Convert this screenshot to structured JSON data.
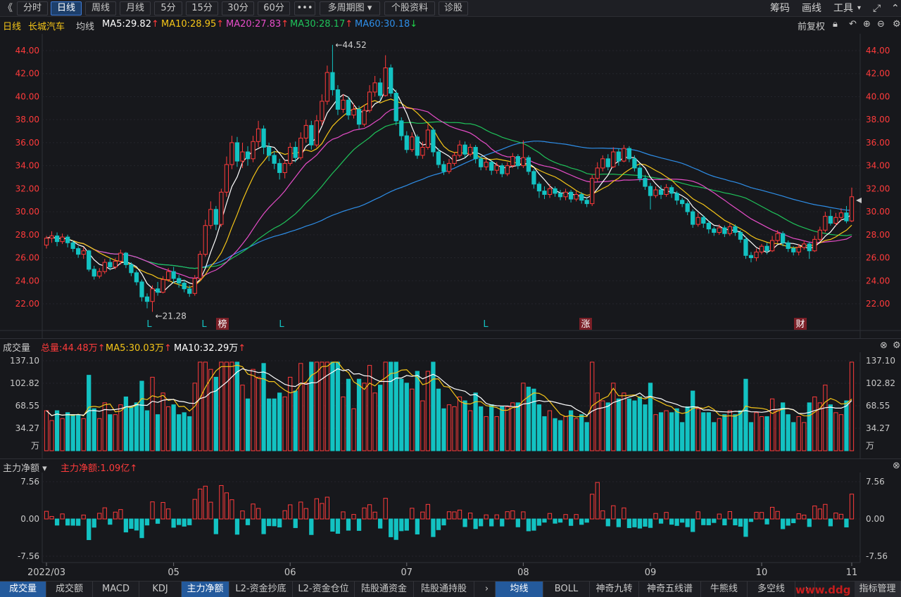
{
  "toolbar": {
    "back": "《",
    "tabs": [
      "分时",
      "日线",
      "周线",
      "月线",
      "5分",
      "15分",
      "30分",
      "60分"
    ],
    "more": "•••",
    "multi_period": "多周期图",
    "stock_info": "个股资料",
    "diagnose": "诊股",
    "right": [
      "筹码",
      "画线",
      "工具"
    ]
  },
  "ma_info": {
    "period": "日线",
    "stock": "长城汽车",
    "avg_label": "均线",
    "ma5": "MA5:29.82",
    "ma10": "MA10:28.95",
    "ma20": "MA20:27.83",
    "ma30": "MA30:28.17",
    "ma60": "MA60:30.18",
    "adjust": "前复权"
  },
  "price_axis": [
    "44.00",
    "42.00",
    "40.00",
    "38.00",
    "36.00",
    "34.00",
    "32.00",
    "30.00",
    "28.00",
    "26.00",
    "24.00",
    "22.00"
  ],
  "annotations": {
    "high": "44.52",
    "low": "21.28"
  },
  "markers": [
    "L",
    "L",
    "榜",
    "L",
    "L",
    "涨",
    "财"
  ],
  "volume": {
    "title": "成交量",
    "total": "总量:44.48万",
    "ma5": "MA5:30.03万",
    "ma10": "MA10:32.29万",
    "axis": [
      "137.10",
      "102.82",
      "68.55",
      "34.27"
    ],
    "unit": "万"
  },
  "netflow": {
    "title": "主力净额",
    "value": "主力净额:1.09亿",
    "axis": [
      "7.56",
      "0.00",
      "-7.56"
    ]
  },
  "date_axis": [
    "2022/03",
    "05",
    "06",
    "07",
    "08",
    "09",
    "10",
    "11"
  ],
  "bottom_tabs_left": [
    "成交量",
    "成交额",
    "MACD",
    "KDJ",
    "主力净额",
    "L2-资金抄底",
    "L2-资金仓位",
    "陆股通资金",
    "陆股通持股"
  ],
  "bottom_tabs_right": [
    "均线",
    "BOLL",
    "神奇九转",
    "神奇五线谱",
    "牛熊线",
    "多空线"
  ],
  "bottom_right": "指标管理",
  "watermark": "www.ddg",
  "colors": {
    "up": "#ff3b3b",
    "down": "#13c2c2",
    "ma5": "#ffffff",
    "ma10": "#f5c518",
    "ma20": "#e64dc8",
    "ma30": "#1fc25a",
    "ma60": "#2e8ee8"
  },
  "chart_data": {
    "type": "candlestick",
    "ylim": [
      21,
      45
    ],
    "candles": [
      [
        27.1,
        27.7,
        27.9,
        26.8
      ],
      [
        27.7,
        27.9,
        28.3,
        27.3
      ],
      [
        27.9,
        27.4,
        28.2,
        27.0
      ],
      [
        27.4,
        27.8,
        28.1,
        27.2
      ],
      [
        27.8,
        27.3,
        28.0,
        26.9
      ],
      [
        27.3,
        26.8,
        27.5,
        26.5
      ],
      [
        26.8,
        26.3,
        27.0,
        26.0
      ],
      [
        26.3,
        26.6,
        26.9,
        25.9
      ],
      [
        26.6,
        25.0,
        26.7,
        24.8
      ],
      [
        25.0,
        24.4,
        25.3,
        24.1
      ],
      [
        24.4,
        24.8,
        25.1,
        24.2
      ],
      [
        24.8,
        25.6,
        25.9,
        24.6
      ],
      [
        25.6,
        25.2,
        26.0,
        24.9
      ],
      [
        25.2,
        25.7,
        26.0,
        25.0
      ],
      [
        25.7,
        26.4,
        26.7,
        25.4
      ],
      [
        26.4,
        25.4,
        26.5,
        25.1
      ],
      [
        25.4,
        24.7,
        25.6,
        24.4
      ],
      [
        24.7,
        23.9,
        24.9,
        23.6
      ],
      [
        23.9,
        22.6,
        24.1,
        22.2
      ],
      [
        22.6,
        22.2,
        22.9,
        21.6
      ],
      [
        22.2,
        23.3,
        23.6,
        21.3
      ],
      [
        23.3,
        23.0,
        23.9,
        22.7
      ],
      [
        23.0,
        24.1,
        24.4,
        22.9
      ],
      [
        24.1,
        24.8,
        25.1,
        23.9
      ],
      [
        24.8,
        24.2,
        25.2,
        23.8
      ],
      [
        24.2,
        23.8,
        24.5,
        23.4
      ],
      [
        23.8,
        23.3,
        24.1,
        23.0
      ],
      [
        23.3,
        22.9,
        23.6,
        22.6
      ],
      [
        22.9,
        24.2,
        24.5,
        22.7
      ],
      [
        24.2,
        26.3,
        26.6,
        24.0
      ],
      [
        26.3,
        28.8,
        29.3,
        26.1
      ],
      [
        28.8,
        30.2,
        30.9,
        28.5
      ],
      [
        30.2,
        28.9,
        30.5,
        28.4
      ],
      [
        28.9,
        31.7,
        32.0,
        28.7
      ],
      [
        31.7,
        34.1,
        34.8,
        31.3
      ],
      [
        34.1,
        36.0,
        36.6,
        33.7
      ],
      [
        36.0,
        34.4,
        36.5,
        33.9
      ],
      [
        34.4,
        35.2,
        36.0,
        33.8
      ],
      [
        35.2,
        34.6,
        35.7,
        34.0
      ],
      [
        34.6,
        36.1,
        36.6,
        34.3
      ],
      [
        36.1,
        37.2,
        37.9,
        35.6
      ],
      [
        37.2,
        35.6,
        37.5,
        35.0
      ],
      [
        35.6,
        34.9,
        36.0,
        34.4
      ],
      [
        34.9,
        34.2,
        35.3,
        33.7
      ],
      [
        34.2,
        33.4,
        34.6,
        32.8
      ],
      [
        33.4,
        34.2,
        34.5,
        32.9
      ],
      [
        34.2,
        35.6,
        36.0,
        34.0
      ],
      [
        35.6,
        34.7,
        36.1,
        34.3
      ],
      [
        34.7,
        36.4,
        36.9,
        34.5
      ],
      [
        36.4,
        37.5,
        38.0,
        36.0
      ],
      [
        37.5,
        35.8,
        37.9,
        35.4
      ],
      [
        35.8,
        37.9,
        38.4,
        35.6
      ],
      [
        37.9,
        39.6,
        40.2,
        37.5
      ],
      [
        39.6,
        42.1,
        42.7,
        39.3
      ],
      [
        42.1,
        40.6,
        44.5,
        40.1
      ],
      [
        40.6,
        38.9,
        41.0,
        38.4
      ],
      [
        38.9,
        39.7,
        40.2,
        38.6
      ],
      [
        39.7,
        38.4,
        40.0,
        38.0
      ],
      [
        38.4,
        38.9,
        39.4,
        38.1
      ],
      [
        38.9,
        37.6,
        39.2,
        37.2
      ],
      [
        37.6,
        38.8,
        39.3,
        37.4
      ],
      [
        38.8,
        40.4,
        41.0,
        38.6
      ],
      [
        40.4,
        41.2,
        41.8,
        40.0
      ],
      [
        41.2,
        40.1,
        41.6,
        39.7
      ],
      [
        40.1,
        42.5,
        43.6,
        40.0
      ],
      [
        42.5,
        40.3,
        42.8,
        40.0
      ],
      [
        40.3,
        37.9,
        40.6,
        37.5
      ],
      [
        37.9,
        36.6,
        38.2,
        36.2
      ],
      [
        36.6,
        35.4,
        37.0,
        35.1
      ],
      [
        35.4,
        36.5,
        36.9,
        35.2
      ],
      [
        36.5,
        34.9,
        36.7,
        34.6
      ],
      [
        34.9,
        35.6,
        36.1,
        34.6
      ],
      [
        35.6,
        37.1,
        37.6,
        35.4
      ],
      [
        37.1,
        35.2,
        37.3,
        34.8
      ],
      [
        35.2,
        34.1,
        35.5,
        33.8
      ],
      [
        34.1,
        33.5,
        34.4,
        33.2
      ],
      [
        33.5,
        34.2,
        34.6,
        33.3
      ],
      [
        34.2,
        34.9,
        35.2,
        34.0
      ],
      [
        34.9,
        35.8,
        36.2,
        34.7
      ],
      [
        35.8,
        35.0,
        36.1,
        34.7
      ],
      [
        35.0,
        35.6,
        35.9,
        34.8
      ],
      [
        35.6,
        34.6,
        35.8,
        34.2
      ],
      [
        34.6,
        33.9,
        34.8,
        33.6
      ],
      [
        33.9,
        34.3,
        34.6,
        33.6
      ],
      [
        34.3,
        33.6,
        34.5,
        33.2
      ],
      [
        33.6,
        34.0,
        34.3,
        33.3
      ],
      [
        34.0,
        33.3,
        34.2,
        33.0
      ],
      [
        33.3,
        34.0,
        34.3,
        33.1
      ],
      [
        34.0,
        34.8,
        35.1,
        33.8
      ],
      [
        34.8,
        34.0,
        35.0,
        33.7
      ],
      [
        34.0,
        34.7,
        36.2,
        33.8
      ],
      [
        34.7,
        33.5,
        34.9,
        33.2
      ],
      [
        33.5,
        32.4,
        33.7,
        32.0
      ],
      [
        32.4,
        31.8,
        32.6,
        31.2
      ],
      [
        31.8,
        31.5,
        32.2,
        31.1
      ],
      [
        31.5,
        32.0,
        32.4,
        31.2
      ],
      [
        32.0,
        31.6,
        32.2,
        31.3
      ],
      [
        31.6,
        31.3,
        31.9,
        31.0
      ],
      [
        31.3,
        31.7,
        32.0,
        31.0
      ],
      [
        31.7,
        31.1,
        31.9,
        30.8
      ],
      [
        31.1,
        31.5,
        31.8,
        30.9
      ],
      [
        31.5,
        31.0,
        31.7,
        30.7
      ],
      [
        31.0,
        30.7,
        31.2,
        30.4
      ],
      [
        30.7,
        32.9,
        33.2,
        30.5
      ],
      [
        32.9,
        33.8,
        34.3,
        32.6
      ],
      [
        33.8,
        34.6,
        34.9,
        33.5
      ],
      [
        34.6,
        33.9,
        35.0,
        33.6
      ],
      [
        33.9,
        35.2,
        35.6,
        33.8
      ],
      [
        35.2,
        34.4,
        35.5,
        34.0
      ],
      [
        34.4,
        35.5,
        35.8,
        34.3
      ],
      [
        35.5,
        34.6,
        35.7,
        34.3
      ],
      [
        34.6,
        33.8,
        34.9,
        33.5
      ],
      [
        33.8,
        32.9,
        34.1,
        32.6
      ],
      [
        32.9,
        32.2,
        33.2,
        31.9
      ],
      [
        32.2,
        31.4,
        32.5,
        30.2
      ],
      [
        31.4,
        31.9,
        32.2,
        31.2
      ],
      [
        31.9,
        31.5,
        32.3,
        31.1
      ],
      [
        31.5,
        32.1,
        32.4,
        31.3
      ],
      [
        32.1,
        31.6,
        32.3,
        31.2
      ],
      [
        31.6,
        31.0,
        31.8,
        30.6
      ],
      [
        31.0,
        30.7,
        31.2,
        30.4
      ],
      [
        30.7,
        30.0,
        30.9,
        29.7
      ],
      [
        30.0,
        28.9,
        30.2,
        28.6
      ],
      [
        28.9,
        29.5,
        29.9,
        28.7
      ],
      [
        29.5,
        29.0,
        29.7,
        28.6
      ],
      [
        29.0,
        28.5,
        29.2,
        28.1
      ],
      [
        28.5,
        28.2,
        28.7,
        27.9
      ],
      [
        28.2,
        28.6,
        28.9,
        28.0
      ],
      [
        28.6,
        28.1,
        28.8,
        27.8
      ],
      [
        28.1,
        28.7,
        29.0,
        27.9
      ],
      [
        28.7,
        28.2,
        28.9,
        27.9
      ],
      [
        28.2,
        27.6,
        28.4,
        27.3
      ],
      [
        27.6,
        26.2,
        27.8,
        25.9
      ],
      [
        26.2,
        26.0,
        26.5,
        25.6
      ],
      [
        26.0,
        26.5,
        26.8,
        25.7
      ],
      [
        26.5,
        27.0,
        27.2,
        26.3
      ],
      [
        27.0,
        26.6,
        27.3,
        26.3
      ],
      [
        26.6,
        27.5,
        27.9,
        26.5
      ],
      [
        27.5,
        28.1,
        28.4,
        27.3
      ],
      [
        28.1,
        27.3,
        28.3,
        27.0
      ],
      [
        27.3,
        26.8,
        27.5,
        26.5
      ],
      [
        26.8,
        26.5,
        27.0,
        26.2
      ],
      [
        26.5,
        26.9,
        27.2,
        26.2
      ],
      [
        26.9,
        27.2,
        27.5,
        26.7
      ],
      [
        27.2,
        26.6,
        27.4,
        25.9
      ],
      [
        26.6,
        27.6,
        27.9,
        26.5
      ],
      [
        27.6,
        28.4,
        28.7,
        27.4
      ],
      [
        28.4,
        29.6,
        30.0,
        28.2
      ],
      [
        29.6,
        29.0,
        30.2,
        28.8
      ],
      [
        29.0,
        29.5,
        29.9,
        28.8
      ],
      [
        29.5,
        29.9,
        30.3,
        29.2
      ],
      [
        29.9,
        29.2,
        30.5,
        29.0
      ],
      [
        29.2,
        31.3,
        32.1,
        29.1
      ]
    ]
  }
}
